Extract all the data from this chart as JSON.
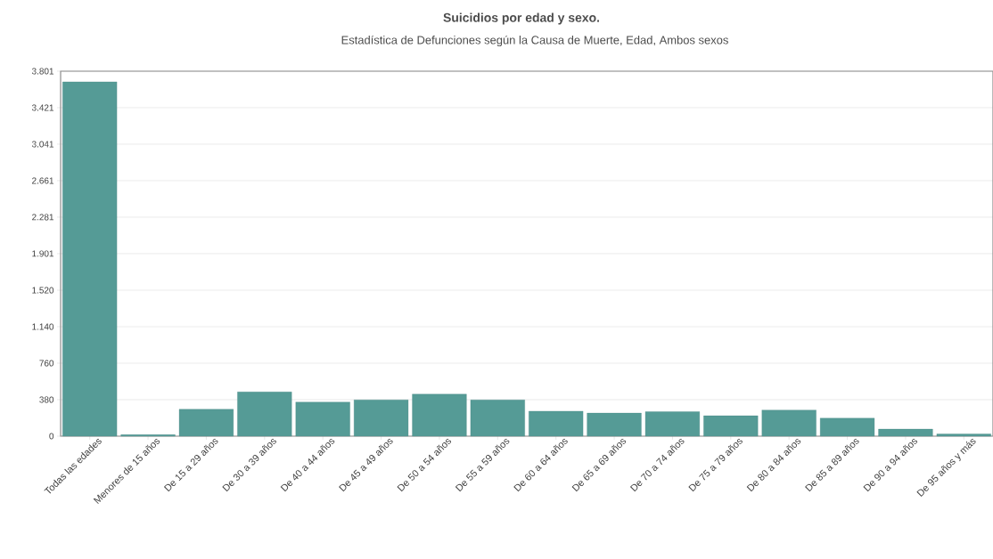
{
  "chart_data": {
    "type": "bar",
    "title": "Suicidios por edad y sexo.",
    "subtitle": "Estadística de Defunciones según la Causa de Muerte, Edad, Ambos sexos",
    "categories": [
      "Todas las edades",
      "Menores de 15 años",
      "De 15 a 29 años",
      "De 30 a 39 años",
      "De 40 a 44 años",
      "De 45 a 49 años",
      "De 50 a 54 años",
      "De 55 a 59 años",
      "De 60 a 64 años",
      "De 65 a 69 años",
      "De 70 a 74 años",
      "De 75 a 79 años",
      "De 80 a 84 años",
      "De 85 a 89 años",
      "De 90 a 94 años",
      "De 95 años y más"
    ],
    "values": [
      3690,
      15,
      280,
      460,
      355,
      378,
      437,
      377,
      260,
      240,
      255,
      212,
      272,
      187,
      73,
      22
    ],
    "color": "#559b96",
    "ylim": [
      0,
      3801
    ],
    "yticks": [
      0,
      380,
      760,
      {
        "value": 1140,
        "label": "1.140"
      },
      {
        "value": 1520,
        "label": "1.520"
      },
      {
        "value": 1901,
        "label": "1.901"
      },
      {
        "value": 2281,
        "label": "2.281"
      },
      {
        "value": 2661,
        "label": "2.661"
      },
      {
        "value": 3041,
        "label": "3.041"
      },
      {
        "value": 3421,
        "label": "3.421"
      },
      {
        "value": 3801,
        "label": "3.801"
      }
    ],
    "grid": "y"
  }
}
